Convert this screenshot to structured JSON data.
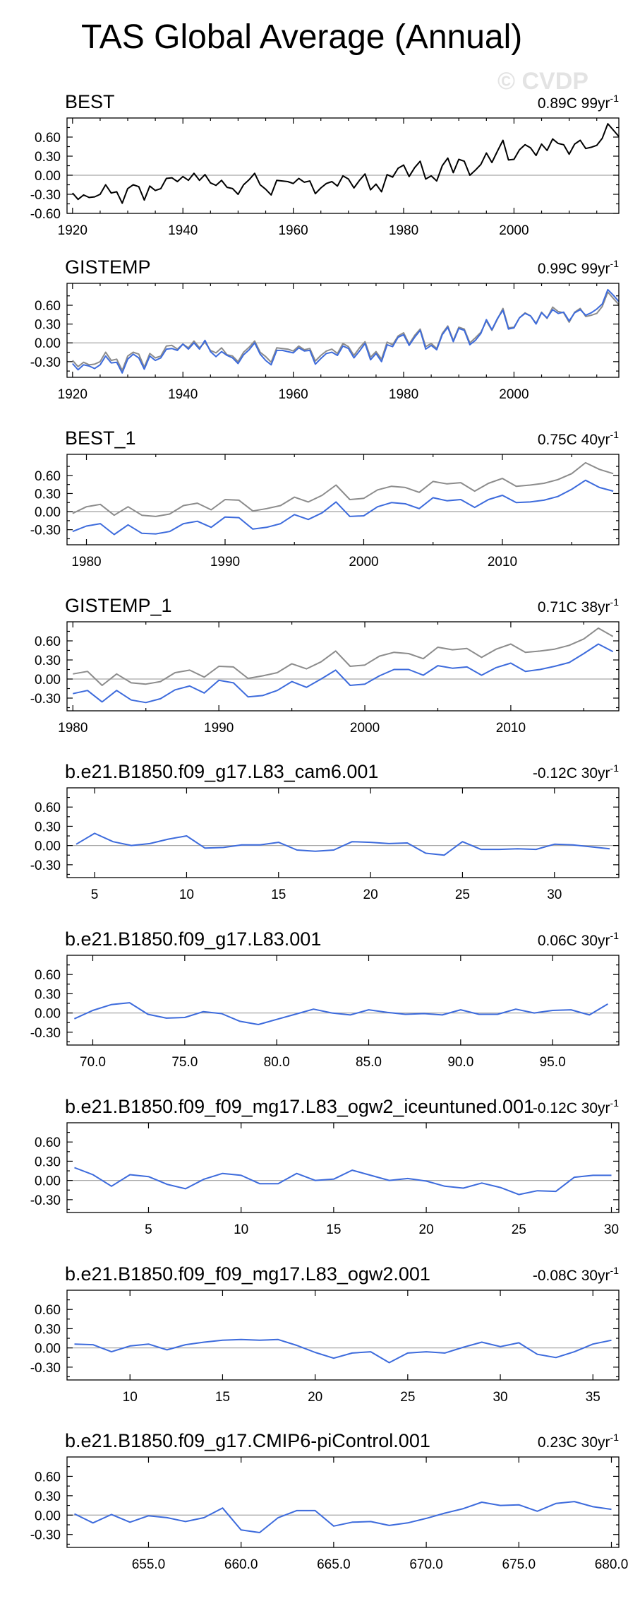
{
  "page_title": "TAS Global Average (Annual)",
  "watermark": "© CVDP",
  "colors": {
    "black": "#000000",
    "gray": "#8c8c8c",
    "blue": "#3d6bdc",
    "zero": "#a8a8a8"
  },
  "chart_data": [
    {
      "type": "line",
      "title": "BEST",
      "trend": "0.89C 99yr",
      "trend_exp": "-1",
      "xlim": [
        1919,
        2019
      ],
      "ylim": [
        -0.6,
        0.9
      ],
      "yticks": [
        -0.6,
        -0.3,
        0.0,
        0.3,
        0.6
      ],
      "ytick_labels": [
        "-0.60",
        "-0.30",
        "0.00",
        "0.30",
        "0.60"
      ],
      "xticks": [
        1920,
        1940,
        1960,
        1980,
        2000
      ],
      "xtick_labels": [
        "1920",
        "1940",
        "1960",
        "1980",
        "2000"
      ],
      "minor_xticks": [
        1925,
        1930,
        1935,
        1945,
        1950,
        1955,
        1965,
        1970,
        1975,
        1985,
        1990,
        1995,
        2005,
        2010,
        2015
      ],
      "series": [
        {
          "name": "BEST",
          "color": "#000000",
          "x_start": 1920,
          "values": [
            -0.28,
            -0.38,
            -0.31,
            -0.35,
            -0.34,
            -0.3,
            -0.15,
            -0.28,
            -0.26,
            -0.44,
            -0.21,
            -0.15,
            -0.18,
            -0.39,
            -0.17,
            -0.24,
            -0.21,
            -0.05,
            -0.04,
            -0.1,
            -0.02,
            -0.08,
            0.03,
            -0.08,
            0.01,
            -0.12,
            -0.16,
            -0.08,
            -0.19,
            -0.21,
            -0.3,
            -0.15,
            -0.07,
            0.03,
            -0.15,
            -0.22,
            -0.31,
            -0.08,
            -0.09,
            -0.1,
            -0.13,
            -0.05,
            -0.11,
            -0.09,
            -0.29,
            -0.2,
            -0.13,
            -0.1,
            -0.17,
            -0.01,
            -0.06,
            -0.2,
            -0.08,
            0.02,
            -0.23,
            -0.14,
            -0.26,
            0.01,
            -0.03,
            0.11,
            0.16,
            -0.02,
            0.12,
            0.22,
            -0.06,
            -0.01,
            -0.09,
            0.15,
            0.27,
            0.04,
            0.25,
            0.22,
            0.0,
            0.08,
            0.17,
            0.35,
            0.2,
            0.38,
            0.55,
            0.24,
            0.25,
            0.4,
            0.48,
            0.43,
            0.31,
            0.49,
            0.39,
            0.57,
            0.5,
            0.48,
            0.33,
            0.49,
            0.55,
            0.42,
            0.44,
            0.47,
            0.58,
            0.81,
            0.71,
            0.61
          ]
        }
      ]
    },
    {
      "type": "line",
      "title": "GISTEMP",
      "trend": "0.99C 99yr",
      "trend_exp": "-1",
      "xlim": [
        1919,
        2019
      ],
      "ylim": [
        -0.55,
        0.95
      ],
      "yticks": [
        -0.3,
        0.0,
        0.3,
        0.6
      ],
      "ytick_labels": [
        "-0.30",
        "0.00",
        "0.30",
        "0.60"
      ],
      "xticks": [
        1920,
        1940,
        1960,
        1980,
        2000
      ],
      "xtick_labels": [
        "1920",
        "1940",
        "1960",
        "1980",
        "2000"
      ],
      "minor_xticks": [
        1925,
        1930,
        1935,
        1945,
        1950,
        1955,
        1965,
        1970,
        1975,
        1985,
        1990,
        1995,
        2005,
        2010,
        2015
      ],
      "series": [
        {
          "name": "BEST",
          "color": "#8c8c8c",
          "x_start": 1920,
          "values": [
            -0.28,
            -0.38,
            -0.31,
            -0.35,
            -0.34,
            -0.3,
            -0.15,
            -0.28,
            -0.26,
            -0.44,
            -0.21,
            -0.15,
            -0.18,
            -0.39,
            -0.17,
            -0.24,
            -0.21,
            -0.05,
            -0.04,
            -0.1,
            -0.02,
            -0.08,
            0.03,
            -0.08,
            0.01,
            -0.12,
            -0.16,
            -0.08,
            -0.19,
            -0.21,
            -0.3,
            -0.15,
            -0.07,
            0.03,
            -0.15,
            -0.22,
            -0.31,
            -0.08,
            -0.09,
            -0.1,
            -0.13,
            -0.05,
            -0.11,
            -0.09,
            -0.29,
            -0.2,
            -0.13,
            -0.1,
            -0.17,
            -0.01,
            -0.06,
            -0.2,
            -0.08,
            0.02,
            -0.23,
            -0.14,
            -0.26,
            0.01,
            -0.03,
            0.11,
            0.16,
            -0.02,
            0.12,
            0.22,
            -0.06,
            -0.01,
            -0.09,
            0.15,
            0.27,
            0.04,
            0.25,
            0.22,
            0.0,
            0.08,
            0.17,
            0.35,
            0.2,
            0.38,
            0.55,
            0.24,
            0.25,
            0.4,
            0.48,
            0.43,
            0.31,
            0.49,
            0.39,
            0.57,
            0.5,
            0.48,
            0.33,
            0.49,
            0.55,
            0.42,
            0.44,
            0.47,
            0.58,
            0.81,
            0.71,
            0.61
          ]
        },
        {
          "name": "GISTEMP",
          "color": "#3d6bdc",
          "x_start": 1920,
          "values": [
            -0.33,
            -0.43,
            -0.35,
            -0.37,
            -0.41,
            -0.35,
            -0.21,
            -0.32,
            -0.31,
            -0.48,
            -0.26,
            -0.18,
            -0.24,
            -0.42,
            -0.21,
            -0.28,
            -0.24,
            -0.1,
            -0.09,
            -0.12,
            -0.02,
            -0.1,
            0.0,
            -0.1,
            0.04,
            -0.14,
            -0.22,
            -0.14,
            -0.2,
            -0.24,
            -0.33,
            -0.19,
            -0.11,
            0.0,
            -0.18,
            -0.28,
            -0.35,
            -0.12,
            -0.12,
            -0.14,
            -0.16,
            -0.08,
            -0.13,
            -0.12,
            -0.34,
            -0.25,
            -0.17,
            -0.15,
            -0.2,
            -0.05,
            -0.09,
            -0.24,
            -0.13,
            -0.01,
            -0.27,
            -0.17,
            -0.3,
            -0.03,
            -0.06,
            0.09,
            0.13,
            -0.04,
            0.09,
            0.2,
            -0.1,
            -0.04,
            -0.11,
            0.13,
            0.25,
            0.02,
            0.23,
            0.2,
            -0.03,
            0.04,
            0.15,
            0.37,
            0.21,
            0.39,
            0.52,
            0.22,
            0.24,
            0.4,
            0.47,
            0.43,
            0.3,
            0.48,
            0.4,
            0.53,
            0.47,
            0.49,
            0.35,
            0.48,
            0.53,
            0.44,
            0.48,
            0.54,
            0.62,
            0.85,
            0.76,
            0.66
          ]
        }
      ]
    },
    {
      "type": "line",
      "title": "BEST_1",
      "trend": "0.75C 40yr",
      "trend_exp": "-1",
      "xlim": [
        1978.6,
        2018.4
      ],
      "ylim": [
        -0.55,
        0.95
      ],
      "yticks": [
        -0.3,
        0.0,
        0.3,
        0.6
      ],
      "ytick_labels": [
        "-0.30",
        "0.00",
        "0.30",
        "0.60"
      ],
      "xticks": [
        1980,
        1990,
        2000,
        2010
      ],
      "xtick_labels": [
        "1980",
        "1990",
        "2000",
        "2010"
      ],
      "minor_xticks": [
        1985,
        1995,
        2005,
        2015
      ],
      "series": [
        {
          "name": "BEST",
          "color": "#8c8c8c",
          "x_start": 1979,
          "values": [
            -0.03,
            0.08,
            0.12,
            -0.06,
            0.08,
            -0.06,
            -0.08,
            -0.04,
            0.1,
            0.14,
            0.03,
            0.2,
            0.19,
            0.01,
            0.05,
            0.1,
            0.24,
            0.16,
            0.27,
            0.44,
            0.2,
            0.22,
            0.36,
            0.42,
            0.4,
            0.32,
            0.5,
            0.46,
            0.48,
            0.34,
            0.47,
            0.55,
            0.42,
            0.44,
            0.47,
            0.53,
            0.63,
            0.81,
            0.7,
            0.63
          ]
        },
        {
          "name": "BEST_1",
          "color": "#3d6bdc",
          "x_start": 1979,
          "values": [
            -0.33,
            -0.24,
            -0.2,
            -0.38,
            -0.22,
            -0.36,
            -0.37,
            -0.33,
            -0.2,
            -0.16,
            -0.26,
            -0.09,
            -0.1,
            -0.29,
            -0.26,
            -0.2,
            -0.05,
            -0.13,
            -0.02,
            0.16,
            -0.08,
            -0.07,
            0.08,
            0.15,
            0.13,
            0.05,
            0.23,
            0.18,
            0.2,
            0.07,
            0.2,
            0.27,
            0.15,
            0.16,
            0.19,
            0.25,
            0.37,
            0.52,
            0.4,
            0.34
          ]
        }
      ]
    },
    {
      "type": "line",
      "title": "GISTEMP_1",
      "trend": "0.71C 38yr",
      "trend_exp": "-1",
      "xlim": [
        1979.6,
        2017.4
      ],
      "ylim": [
        -0.5,
        0.9
      ],
      "yticks": [
        -0.3,
        0.0,
        0.3,
        0.6
      ],
      "ytick_labels": [
        "-0.30",
        "0.00",
        "0.30",
        "0.60"
      ],
      "xticks": [
        1980,
        1990,
        2000,
        2010
      ],
      "xtick_labels": [
        "1980",
        "1990",
        "2000",
        "2010"
      ],
      "minor_xticks": [
        1985,
        1995,
        2005,
        2015
      ],
      "series": [
        {
          "name": "BEST",
          "color": "#8c8c8c",
          "x_start": 1980,
          "values": [
            0.08,
            0.12,
            -0.1,
            0.08,
            -0.06,
            -0.08,
            -0.04,
            0.1,
            0.14,
            0.03,
            0.2,
            0.19,
            0.01,
            0.05,
            0.1,
            0.24,
            0.16,
            0.27,
            0.44,
            0.2,
            0.22,
            0.36,
            0.42,
            0.4,
            0.32,
            0.5,
            0.46,
            0.48,
            0.34,
            0.47,
            0.55,
            0.42,
            0.44,
            0.47,
            0.53,
            0.63,
            0.8,
            0.67
          ]
        },
        {
          "name": "GISTEMP_1",
          "color": "#3d6bdc",
          "x_start": 1980,
          "values": [
            -0.23,
            -0.18,
            -0.36,
            -0.18,
            -0.33,
            -0.37,
            -0.31,
            -0.17,
            -0.11,
            -0.22,
            -0.02,
            -0.06,
            -0.28,
            -0.26,
            -0.18,
            -0.04,
            -0.13,
            0.0,
            0.14,
            -0.1,
            -0.08,
            0.05,
            0.15,
            0.15,
            0.06,
            0.21,
            0.17,
            0.19,
            0.06,
            0.18,
            0.25,
            0.12,
            0.15,
            0.2,
            0.26,
            0.4,
            0.55,
            0.43
          ]
        }
      ]
    },
    {
      "type": "line",
      "title": "b.e21.B1850.f09_g17.L83_cam6.001",
      "trend": "-0.12C 30yr",
      "trend_exp": "-1",
      "xlim": [
        3.5,
        33.5
      ],
      "ylim": [
        -0.5,
        0.9
      ],
      "yticks": [
        -0.3,
        0.0,
        0.3,
        0.6
      ],
      "ytick_labels": [
        "-0.30",
        "0.00",
        "0.30",
        "0.60"
      ],
      "xticks": [
        5,
        10,
        15,
        20,
        25,
        30
      ],
      "xtick_labels": [
        "5",
        "10",
        "15",
        "20",
        "25",
        "30"
      ],
      "minor_xticks": [],
      "series": [
        {
          "name": "b.e21.B1850.f09_g17.L83_cam6.001",
          "color": "#3d6bdc",
          "x_start": 4,
          "values": [
            0.02,
            0.19,
            0.06,
            0.0,
            0.03,
            0.1,
            0.15,
            -0.04,
            -0.03,
            0.01,
            0.01,
            0.05,
            -0.07,
            -0.09,
            -0.07,
            0.06,
            0.05,
            0.03,
            0.04,
            -0.12,
            -0.15,
            0.06,
            -0.06,
            -0.06,
            -0.05,
            -0.06,
            0.02,
            0.01,
            -0.02,
            -0.05
          ]
        }
      ]
    },
    {
      "type": "line",
      "title": "b.e21.B1850.f09_g17.L83.001",
      "trend": "0.06C 30yr",
      "trend_exp": "-1",
      "xlim": [
        68.6,
        98.6
      ],
      "ylim": [
        -0.5,
        0.9
      ],
      "yticks": [
        -0.3,
        0.0,
        0.3,
        0.6
      ],
      "ytick_labels": [
        "-0.30",
        "0.00",
        "0.30",
        "0.60"
      ],
      "xticks": [
        70,
        75,
        80,
        85,
        90,
        95
      ],
      "xtick_labels": [
        "70.0",
        "75.0",
        "80.0",
        "85.0",
        "90.0",
        "95.0"
      ],
      "minor_xticks": [],
      "series": [
        {
          "name": "b.e21.B1850.f09_g17.L83.001",
          "color": "#3d6bdc",
          "x_start": 69,
          "values": [
            -0.09,
            0.04,
            0.13,
            0.16,
            -0.02,
            -0.08,
            -0.07,
            0.02,
            -0.01,
            -0.13,
            -0.18,
            -0.1,
            -0.02,
            0.06,
            0.0,
            -0.03,
            0.05,
            0.01,
            -0.02,
            -0.01,
            -0.03,
            0.05,
            -0.02,
            -0.02,
            0.06,
            0.0,
            0.04,
            0.05,
            -0.03,
            0.14
          ]
        }
      ]
    },
    {
      "type": "line",
      "title": "b.e21.B1850.f09_f09_mg17.L83_ogw2_iceuntuned.001",
      "trend": "-0.12C 30yr",
      "trend_exp": "-1",
      "xlim": [
        0.6,
        30.4
      ],
      "ylim": [
        -0.5,
        0.9
      ],
      "yticks": [
        -0.3,
        0.0,
        0.3,
        0.6
      ],
      "ytick_labels": [
        "-0.30",
        "0.00",
        "0.30",
        "0.60"
      ],
      "xticks": [
        5,
        10,
        15,
        20,
        25,
        30
      ],
      "xtick_labels": [
        "5",
        "10",
        "15",
        "20",
        "25",
        "30"
      ],
      "minor_xticks": [],
      "series": [
        {
          "name": "b.e21.B1850.f09_f09_mg17.L83_ogw2_iceuntuned.001",
          "color": "#3d6bdc",
          "x_start": 1,
          "values": [
            0.2,
            0.09,
            -0.09,
            0.09,
            0.06,
            -0.06,
            -0.13,
            0.02,
            0.11,
            0.08,
            -0.05,
            -0.05,
            0.11,
            0.0,
            0.02,
            0.16,
            0.08,
            0.0,
            0.03,
            -0.01,
            -0.09,
            -0.12,
            -0.04,
            -0.11,
            -0.22,
            -0.16,
            -0.17,
            0.05,
            0.08,
            0.08
          ]
        }
      ]
    },
    {
      "type": "line",
      "title": "b.e21.B1850.f09_f09_mg17.L83_ogw2.001",
      "trend": "-0.08C 30yr",
      "trend_exp": "-1",
      "xlim": [
        6.6,
        36.4
      ],
      "ylim": [
        -0.5,
        0.9
      ],
      "yticks": [
        -0.3,
        0.0,
        0.3,
        0.6
      ],
      "ytick_labels": [
        "-0.30",
        "0.00",
        "0.30",
        "0.60"
      ],
      "xticks": [
        10,
        15,
        20,
        25,
        30,
        35
      ],
      "xtick_labels": [
        "10",
        "15",
        "20",
        "25",
        "30",
        "35"
      ],
      "minor_xticks": [],
      "series": [
        {
          "name": "b.e21.B1850.f09_f09_mg17.L83_ogw2.001",
          "color": "#3d6bdc",
          "x_start": 7,
          "values": [
            0.06,
            0.05,
            -0.06,
            0.03,
            0.06,
            -0.03,
            0.05,
            0.09,
            0.12,
            0.13,
            0.12,
            0.13,
            0.04,
            -0.07,
            -0.16,
            -0.08,
            -0.06,
            -0.23,
            -0.08,
            -0.06,
            -0.08,
            0.01,
            0.09,
            0.02,
            0.08,
            -0.1,
            -0.15,
            -0.06,
            0.06,
            0.12
          ]
        }
      ]
    },
    {
      "type": "line",
      "title": "b.e21.B1850.f09_g17.CMIP6-piControl.001",
      "trend": "0.23C 30yr",
      "trend_exp": "-1",
      "xlim": [
        650.6,
        680.4
      ],
      "ylim": [
        -0.5,
        0.9
      ],
      "yticks": [
        -0.3,
        0.0,
        0.3,
        0.6
      ],
      "ytick_labels": [
        "-0.30",
        "0.00",
        "0.30",
        "0.60"
      ],
      "xticks": [
        655,
        660,
        665,
        670,
        675,
        680
      ],
      "xtick_labels": [
        "655.0",
        "660.0",
        "665.0",
        "670.0",
        "675.0",
        "680.0"
      ],
      "minor_xticks": [],
      "series": [
        {
          "name": "b.e21.B1850.f09_g17.CMIP6-piControl.001",
          "color": "#3d6bdc",
          "x_start": 651,
          "values": [
            0.02,
            -0.12,
            0.01,
            -0.11,
            -0.01,
            -0.04,
            -0.1,
            -0.04,
            0.11,
            -0.23,
            -0.27,
            -0.04,
            0.07,
            0.07,
            -0.17,
            -0.11,
            -0.1,
            -0.16,
            -0.12,
            -0.05,
            0.03,
            0.1,
            0.2,
            0.15,
            0.16,
            0.06,
            0.18,
            0.21,
            0.13,
            0.09
          ]
        }
      ]
    }
  ]
}
